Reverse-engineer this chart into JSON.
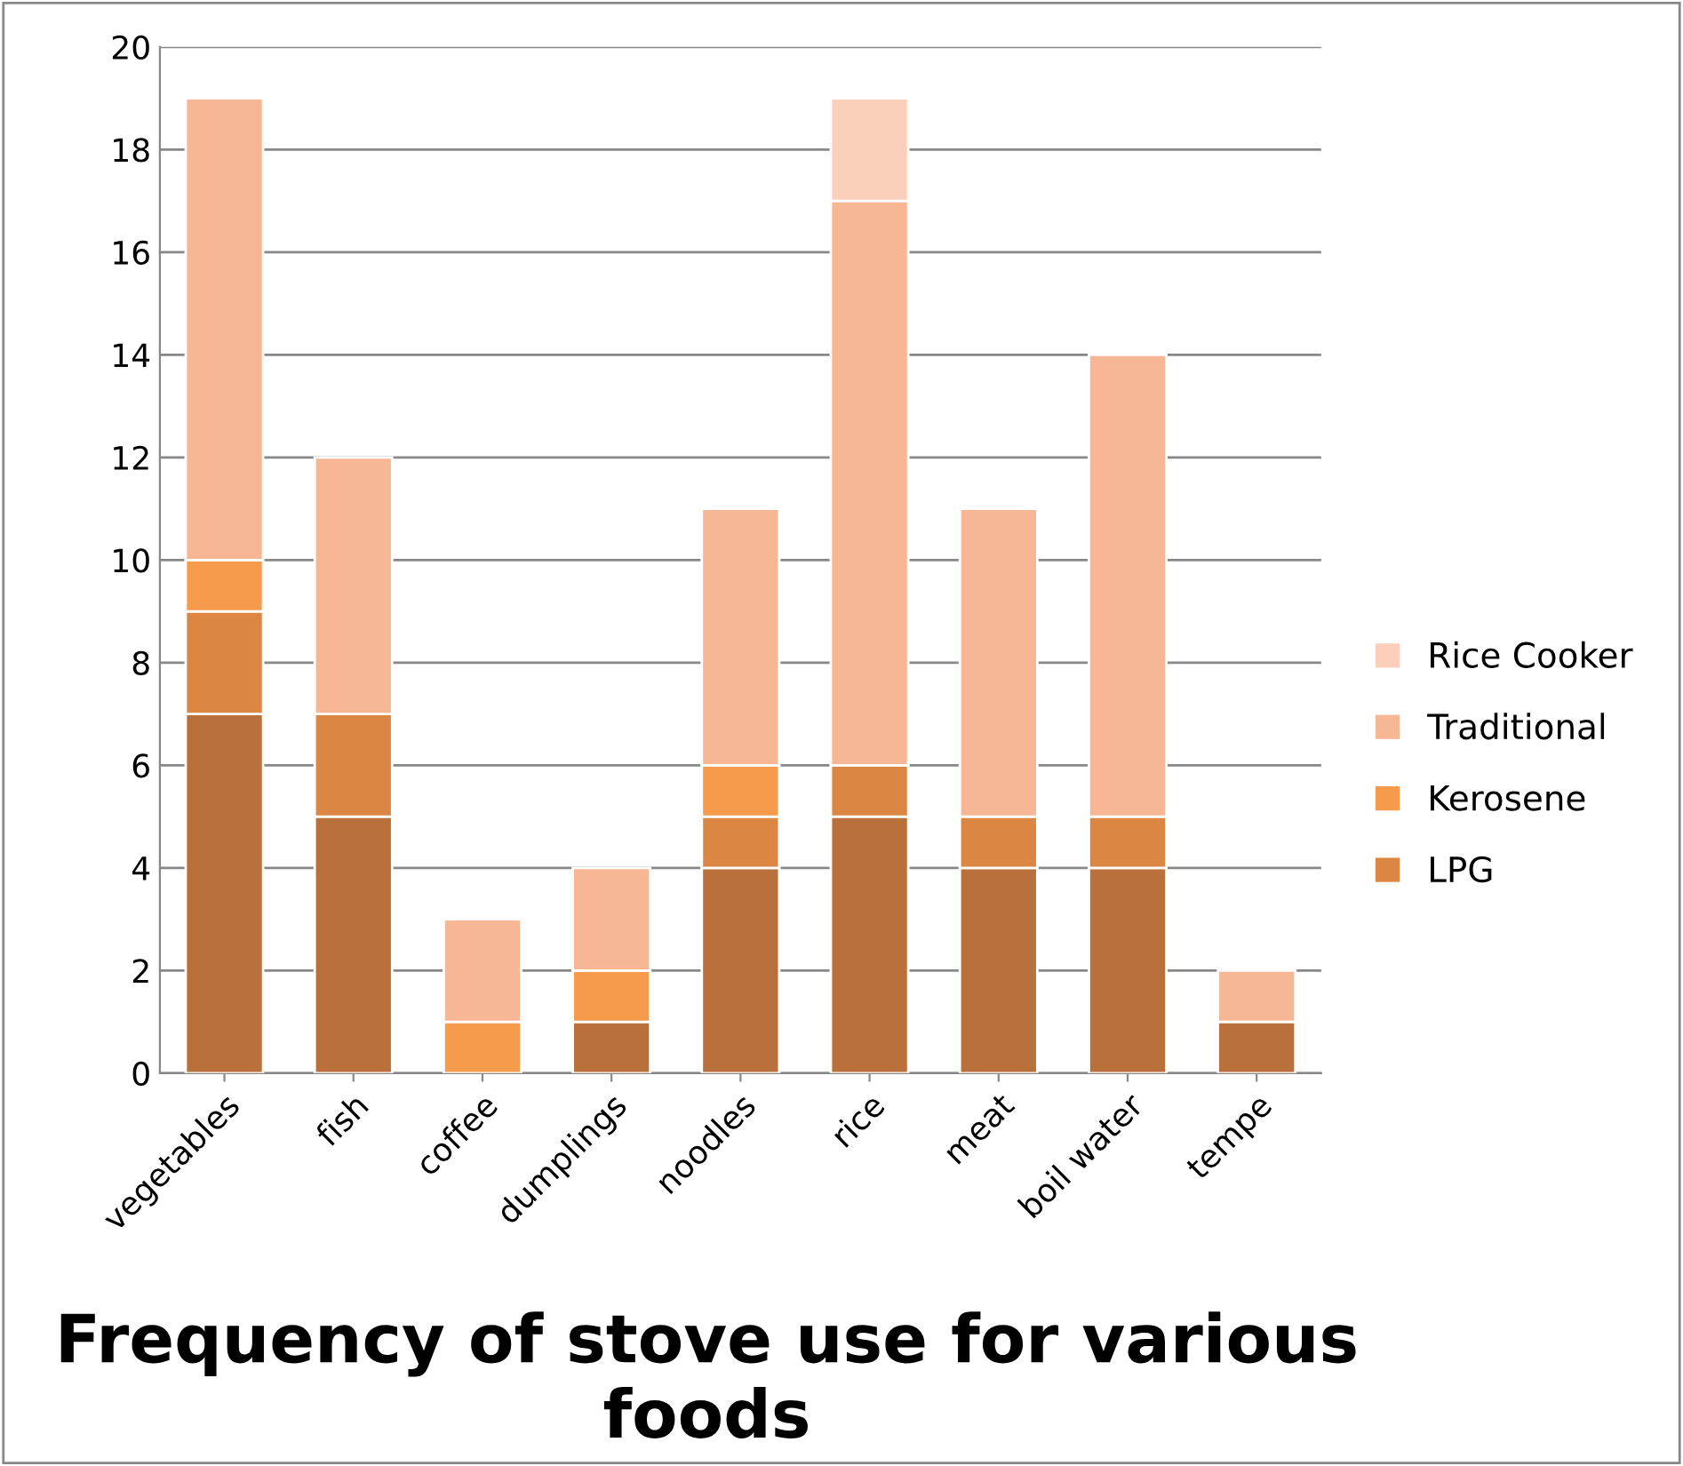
{
  "chart_data": {
    "type": "bar",
    "stacked": true,
    "title": "Frequency of stove use for various foods",
    "categories": [
      "vegetables",
      "fish",
      "coffee",
      "dumplings",
      "noodles",
      "rice",
      "meat",
      "boil water",
      "tempe"
    ],
    "series": [
      {
        "color": "#b9703a",
        "values": [
          7,
          5,
          0,
          1,
          4,
          5,
          4,
          4,
          1
        ]
      },
      {
        "name": "LPG",
        "color": "#dc8643",
        "values": [
          2,
          2,
          0,
          0,
          1,
          1,
          1,
          1,
          0
        ]
      },
      {
        "name": "Kerosene",
        "color": "#f69a4c",
        "values": [
          1,
          0,
          1,
          1,
          1,
          0,
          0,
          0,
          0
        ]
      },
      {
        "name": "Traditional",
        "color": "#f8b794",
        "values": [
          9,
          5,
          2,
          2,
          5,
          11,
          6,
          9,
          1
        ]
      },
      {
        "name": "Rice Cooker",
        "color": "#fbcfb9",
        "values": [
          0,
          0,
          0,
          0,
          0,
          2,
          0,
          0,
          0
        ]
      }
    ],
    "ylim": [
      0,
      20
    ],
    "yticks": [
      0,
      2,
      4,
      6,
      8,
      10,
      12,
      14,
      16,
      18,
      20
    ],
    "grid": "y",
    "legend": "right"
  }
}
